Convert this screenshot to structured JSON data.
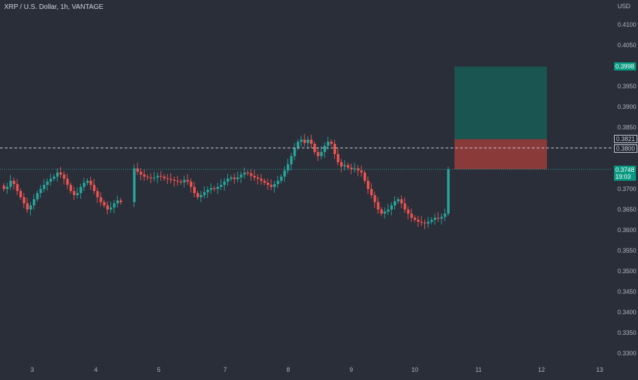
{
  "header": {
    "symbol_title": "XRP / U.S. Dollar, 1h, VANTAGE"
  },
  "price_axis": {
    "currency": "USD",
    "ticks": [
      "0.4100",
      "0.4050",
      "0.4000",
      "0.3950",
      "0.3900",
      "0.3850",
      "0.3800",
      "0.3750",
      "0.3700",
      "0.3650",
      "0.3600",
      "0.3550",
      "0.3500",
      "0.3450",
      "0.3400",
      "0.3350",
      "0.3300"
    ],
    "tick_values": [
      0.41,
      0.405,
      0.4,
      0.395,
      0.39,
      0.385,
      0.38,
      0.375,
      0.37,
      0.365,
      0.36,
      0.355,
      0.35,
      0.345,
      0.34,
      0.335,
      0.33
    ]
  },
  "time_axis": {
    "ticks": [
      "3",
      "4",
      "5",
      "7",
      "8",
      "9",
      "10",
      "11",
      "12",
      "13"
    ]
  },
  "price_tags": {
    "target": "0.3998",
    "stop_zone_top": "0.3821",
    "entry_line": "0.3800",
    "last_price": "0.3748",
    "countdown": "19:03"
  },
  "position_tool": {
    "entry": 0.3748,
    "stop": 0.3821,
    "target": 0.3998,
    "dashed_line": 0.38
  },
  "colors": {
    "background": "#2a2e39",
    "up": "#26a69a",
    "down": "#ef5350",
    "target_zone": "#1a5552",
    "stop_zone": "#8b3a3a",
    "axis_text": "#b2b5be"
  },
  "chart_data": {
    "type": "candlestick",
    "title": "XRP / U.S. Dollar, 1h, VANTAGE",
    "x_ticks": [
      "3",
      "4",
      "5",
      "7",
      "8",
      "9",
      "10",
      "11",
      "12",
      "13"
    ],
    "ylim": [
      0.33,
      0.41
    ],
    "close_series": [
      0.37,
      0.3705,
      0.372,
      0.3712,
      0.3695,
      0.368,
      0.3665,
      0.365,
      0.366,
      0.3675,
      0.369,
      0.37,
      0.371,
      0.3718,
      0.3725,
      0.373,
      0.374,
      0.3735,
      0.3725,
      0.371,
      0.3695,
      0.3685,
      0.369,
      0.3705,
      0.3715,
      0.372,
      0.371,
      0.3695,
      0.368,
      0.3668,
      0.366,
      0.365,
      0.3655,
      0.3665,
      0.3672,
      0.3668,
      0.375,
      0.3742,
      0.3735,
      0.373,
      0.3728,
      0.3726,
      0.3728,
      0.3732,
      0.373,
      0.3726,
      0.3724,
      0.3722,
      0.372,
      0.3718,
      0.3716,
      0.3722,
      0.3718,
      0.3705,
      0.369,
      0.368,
      0.3685,
      0.3692,
      0.3698,
      0.3702,
      0.37,
      0.3705,
      0.371,
      0.3718,
      0.3725,
      0.3728,
      0.3724,
      0.3728,
      0.3735,
      0.374,
      0.3738,
      0.3732,
      0.3728,
      0.3725,
      0.372,
      0.3715,
      0.371,
      0.3705,
      0.3712,
      0.372,
      0.373,
      0.3745,
      0.376,
      0.378,
      0.38,
      0.3815,
      0.382,
      0.3812,
      0.382,
      0.381,
      0.379,
      0.378,
      0.379,
      0.3805,
      0.3815,
      0.381,
      0.3785,
      0.3765,
      0.3755,
      0.3758,
      0.3752,
      0.3748,
      0.375,
      0.3745,
      0.374,
      0.372,
      0.37,
      0.3685,
      0.3668,
      0.365,
      0.364,
      0.3645,
      0.365,
      0.366,
      0.367,
      0.3675,
      0.3665,
      0.365,
      0.364,
      0.363,
      0.3625,
      0.362,
      0.3618,
      0.3616,
      0.362,
      0.3625,
      0.363,
      0.3628,
      0.3632,
      0.364,
      0.3748
    ]
  }
}
